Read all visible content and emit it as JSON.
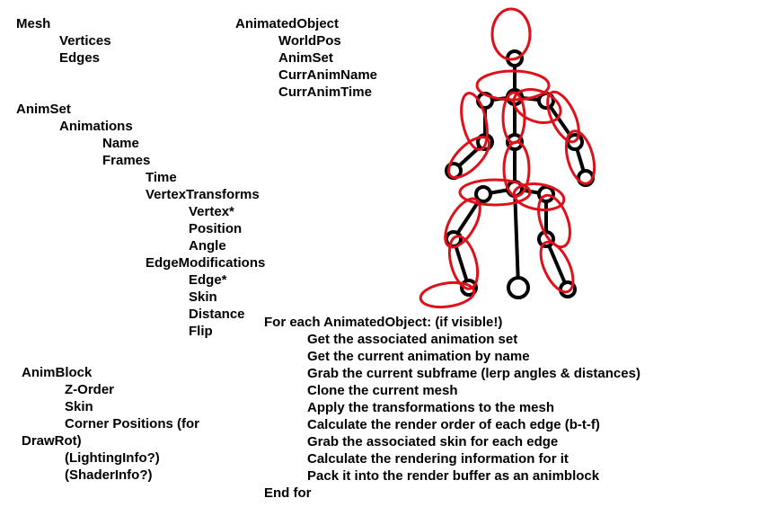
{
  "mesh": {
    "title": "Mesh",
    "fields": [
      "Vertices",
      "Edges"
    ]
  },
  "animated_object": {
    "title": "AnimatedObject",
    "fields": [
      "WorldPos",
      "AnimSet",
      "CurrAnimName",
      "CurrAnimTime"
    ]
  },
  "anim_set": {
    "title": "AnimSet",
    "animations": "Animations",
    "name": "Name",
    "frames": "Frames",
    "time": "Time",
    "vertex_transforms": "VertexTransforms",
    "vertex_fields": [
      "Vertex*",
      "Position",
      "Angle"
    ],
    "edge_modifications": "EdgeModifications",
    "edge_fields": [
      "Edge*",
      "Skin",
      "Distance",
      "Flip"
    ]
  },
  "anim_block": {
    "title": "AnimBlock",
    "fields": [
      "Z-Order",
      "Skin",
      "Corner Positions (for"
    ],
    "wrap": "DrawRot)",
    "extras": [
      "(LightingInfo?)",
      "(ShaderInfo?)"
    ]
  },
  "loop": {
    "header": "For each AnimatedObject: (if visible!)",
    "steps": [
      "Get the associated animation set",
      "Get the current animation by name",
      "Grab the current subframe (lerp angles & distances)",
      "Clone the current mesh",
      "Apply the transformations to the mesh",
      "Calculate the render order of each edge (b-t-f)",
      "Grab the associated skin for each edge",
      "Calculate the rendering information for it",
      "Pack it into the render buffer as an animblock"
    ],
    "footer": "End for"
  },
  "colors": {
    "text": "#000000",
    "skeleton": "#000000",
    "skin": "#e0101a"
  }
}
